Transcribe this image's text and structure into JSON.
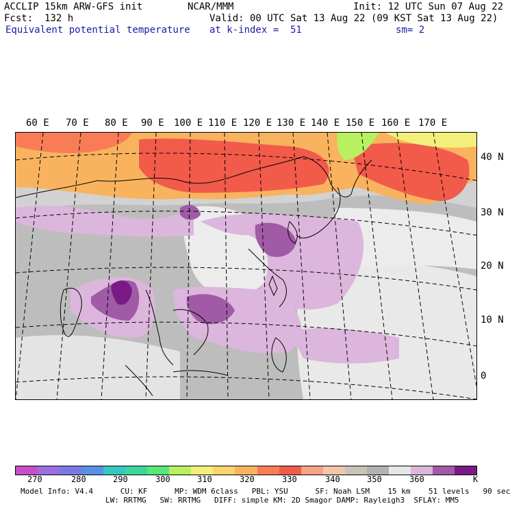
{
  "header": {
    "line1_left": "ACCLIP 15km ARW-GFS init",
    "line1_mid": "NCAR/MMM",
    "line1_right": "Init: 12 UTC Sun 07 Aug 22",
    "line2_left": "Fcst:  132 h",
    "line2_right": "Valid: 00 UTC Sat 13 Aug 22 (09 KST Sat 13 Aug 22)",
    "line3_left": "Equivalent potential temperature",
    "line3_mid": "at k-index =  51",
    "line3_right": "sm= 2"
  },
  "map": {
    "lon_labels": [
      "60 E",
      "70 E",
      "80 E",
      "90 E",
      "100 E",
      "110 E",
      "120 E",
      "130 E",
      "140 E",
      "150 E",
      "160 E",
      "170 E"
    ],
    "lat_labels": [
      "40 N",
      "30 N",
      "20 N",
      "10 N",
      "0"
    ]
  },
  "colorbar": {
    "colors": [
      "#c84fc8",
      "#9a6fe0",
      "#7b78e6",
      "#5a8fe6",
      "#35c8c0",
      "#39d89a",
      "#56e878",
      "#b8f060",
      "#f2f07a",
      "#fad46e",
      "#f9b35f",
      "#f87d57",
      "#f25a4a",
      "#f7a386",
      "#f2c6aa",
      "#c9c2b8",
      "#b2b2b2",
      "#e6e6e6",
      "#dcb6dc",
      "#a05aa6",
      "#7a1a86"
    ],
    "labels": [
      "270",
      "280",
      "290",
      "300",
      "310",
      "320",
      "330",
      "340",
      "350",
      "360"
    ],
    "unit": "K"
  },
  "footer": {
    "line1": "Model Info: V4.4      CU: KF      MP: WDM 6class   PBL: YSU      SF: Noah LSM    15 km    51 levels   90 sec",
    "line2": "LW: RRTMG   SW: RRTMG   DIFF: simple KM: 2D Smagor DAMP: Rayleigh3  SFLAY: MM5"
  }
}
